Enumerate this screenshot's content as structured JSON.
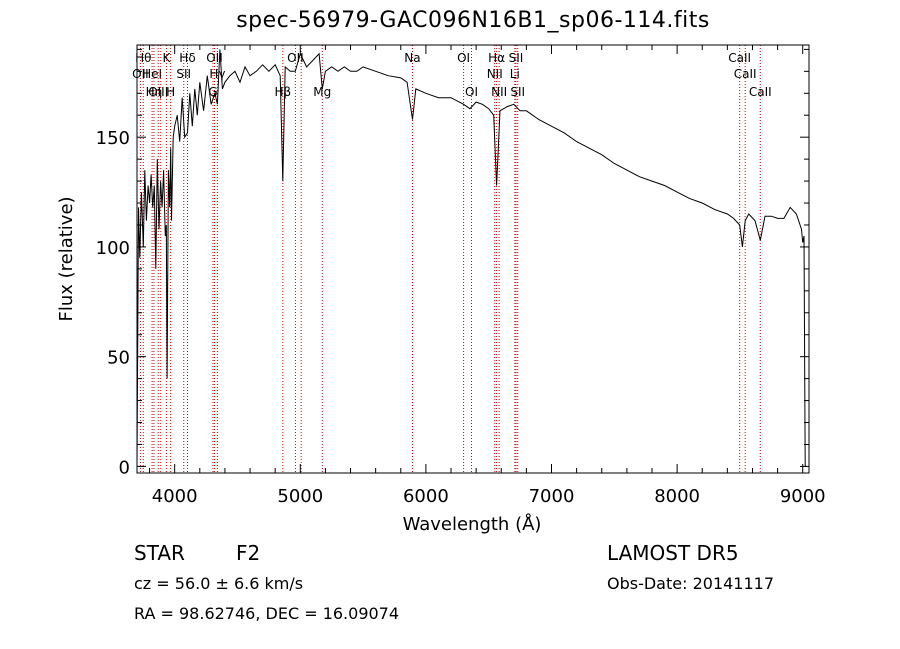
{
  "chart_data": {
    "type": "line",
    "title": "spec-56979-GAC096N16B1_sp06-114.fits",
    "xlabel": "Wavelength (Å)",
    "ylabel": "Flux (relative)",
    "xlim": [
      3700,
      9050
    ],
    "ylim": [
      -3,
      192
    ],
    "x_ticks": [
      4000,
      5000,
      6000,
      7000,
      8000,
      9000
    ],
    "x_tick_labels": [
      "4000",
      "5000",
      "6000",
      "7000",
      "8000",
      "9000"
    ],
    "y_ticks": [
      0,
      50,
      100,
      150
    ],
    "y_tick_labels": [
      "0",
      "50",
      "100",
      "150"
    ],
    "grid": false,
    "line_color": "#000000",
    "marker_color": "#cc0000",
    "series": [
      {
        "x": [
          3700,
          3712,
          3722,
          3735,
          3750,
          3762,
          3775,
          3788,
          3800,
          3812,
          3825,
          3838,
          3850,
          3862,
          3875,
          3888,
          3900,
          3912,
          3925,
          3933,
          3940,
          3950,
          3960,
          3968,
          3975,
          3988,
          4000,
          4020,
          4040,
          4060,
          4080,
          4102,
          4120,
          4140,
          4160,
          4180,
          4200,
          4230,
          4260,
          4290,
          4320,
          4340,
          4360,
          4380,
          4400,
          4440,
          4480,
          4520,
          4560,
          4600,
          4650,
          4700,
          4750,
          4800,
          4840,
          4861,
          4880,
          4920,
          4960,
          5000,
          5050,
          5100,
          5150,
          5175,
          5200,
          5250,
          5300,
          5350,
          5400,
          5450,
          5500,
          5600,
          5700,
          5800,
          5850,
          5893,
          5920,
          6000,
          6100,
          6200,
          6300,
          6350,
          6400,
          6450,
          6500,
          6540,
          6563,
          6590,
          6650,
          6700,
          6750,
          6800,
          6900,
          7000,
          7100,
          7200,
          7300,
          7400,
          7500,
          7600,
          7700,
          7800,
          7900,
          8000,
          8100,
          8200,
          8300,
          8400,
          8450,
          8498,
          8520,
          8542,
          8570,
          8620,
          8662,
          8700,
          8750,
          8800,
          8850,
          8900,
          8950,
          8990,
          9000,
          9010,
          9020,
          9030
        ],
        "y": [
          0,
          118,
          95,
          125,
          100,
          135,
          112,
          128,
          120,
          133,
          118,
          128,
          90,
          140,
          108,
          130,
          118,
          135,
          105,
          110,
          40,
          135,
          118,
          145,
          112,
          150,
          155,
          160,
          148,
          168,
          150,
          152,
          170,
          155,
          172,
          160,
          175,
          162,
          178,
          165,
          170,
          165,
          190,
          172,
          175,
          178,
          180,
          175,
          182,
          178,
          180,
          183,
          180,
          183,
          178,
          130,
          182,
          180,
          180,
          188,
          182,
          185,
          188,
          172,
          180,
          182,
          180,
          182,
          180,
          180,
          182,
          180,
          178,
          177,
          175,
          158,
          172,
          170,
          168,
          168,
          165,
          163,
          166,
          165,
          163,
          160,
          128,
          162,
          164,
          165,
          162,
          162,
          158,
          155,
          152,
          148,
          145,
          142,
          138,
          135,
          132,
          130,
          128,
          125,
          122,
          120,
          117,
          115,
          113,
          110,
          100,
          112,
          115,
          112,
          103,
          114,
          114,
          113,
          113,
          118,
          115,
          108,
          102,
          105,
          0,
          0
        ]
      }
    ],
    "line_markers": [
      {
        "name": "Hθ",
        "x": 3750,
        "level": 1
      },
      {
        "name": "K",
        "x": 3934,
        "level": 1
      },
      {
        "name": "Hδ",
        "x": 4102,
        "level": 1
      },
      {
        "name": "OII",
        "x": 4317,
        "level": 1
      },
      {
        "name": "OII",
        "x": 4961,
        "level": 1
      },
      {
        "name": "Na",
        "x": 5893,
        "level": 1
      },
      {
        "name": "OI",
        "x": 6300,
        "level": 1
      },
      {
        "name": "Hα",
        "x": 6563,
        "level": 1
      },
      {
        "name": "SII",
        "x": 6717,
        "level": 1
      },
      {
        "name": "CaII",
        "x": 8498,
        "level": 1
      },
      {
        "name": "OII",
        "x": 3727,
        "level": 2
      },
      {
        "name": "HeI",
        "x": 3820,
        "level": 2
      },
      {
        "name": "SII",
        "x": 4072,
        "level": 2
      },
      {
        "name": "Hγ",
        "x": 4340,
        "level": 2
      },
      {
        "name": "NII",
        "x": 6548,
        "level": 2
      },
      {
        "name": "Li",
        "x": 6708,
        "level": 2
      },
      {
        "name": "CaII",
        "x": 8542,
        "level": 2
      },
      {
        "name": "OIII",
        "x": 3869,
        "level": 3
      },
      {
        "name": "Hη",
        "x": 3835,
        "level": 3
      },
      {
        "name": "H",
        "x": 3968,
        "level": 3
      },
      {
        "name": "G",
        "x": 4305,
        "level": 3
      },
      {
        "name": "Hβ",
        "x": 4861,
        "level": 3
      },
      {
        "name": "Mg",
        "x": 5175,
        "level": 3
      },
      {
        "name": "OI",
        "x": 6363,
        "level": 3
      },
      {
        "name": "NII",
        "x": 6583,
        "level": 3
      },
      {
        "name": "SII",
        "x": 6731,
        "level": 3
      },
      {
        "name": "CaII",
        "x": 8662,
        "level": 3
      },
      {
        "name": "",
        "x": 3889,
        "level": 0
      },
      {
        "name": "",
        "x": 5007,
        "level": 0
      }
    ]
  },
  "footer": {
    "object_class": "STAR",
    "subclass": "F2",
    "survey": "LAMOST DR5",
    "redshift": "cz = 56.0 ± 6.6 km/s",
    "obs_date": "Obs-Date: 20141117",
    "coords": "RA =  98.62746, DEC =  16.09074"
  }
}
